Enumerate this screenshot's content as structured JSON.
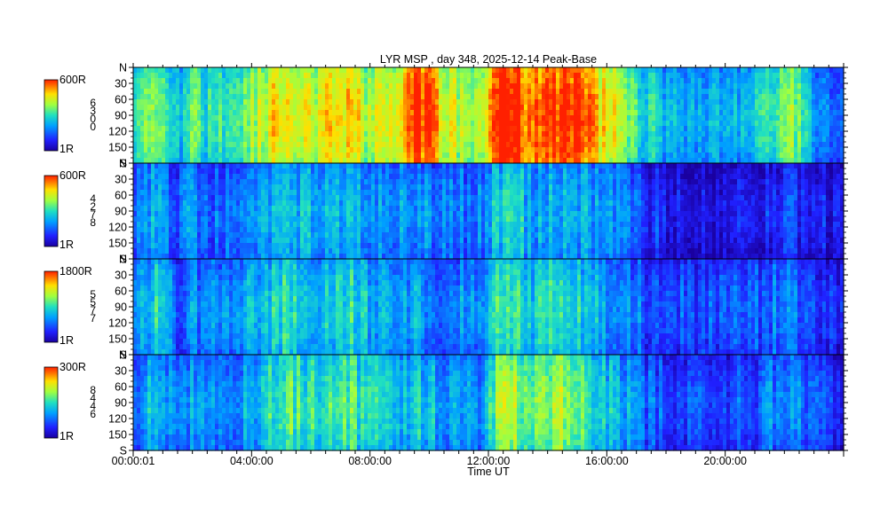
{
  "chart_data": {
    "type": "heatmap",
    "title": "LYR MSP , day 348, 2025-12-14 Peak-Base",
    "xlabel": "Time UT",
    "x_ticks": [
      "00:00:01",
      "04:00:00",
      "08:00:00",
      "12:00:00",
      "16:00:00",
      "20:00:00"
    ],
    "x_range_hours": [
      0,
      24
    ],
    "y_range_deg": [
      0,
      180
    ],
    "y_ticks": [
      "N",
      "30",
      "60",
      "90",
      "120",
      "150",
      "S"
    ],
    "panels": [
      {
        "colorbar_max": "600R",
        "colorbar_min": "1R",
        "channel_digits": [
          "6",
          "3",
          "0",
          "0"
        ],
        "intensity_profile": [
          0.38,
          0.5,
          0.62,
          0.45,
          0.35,
          0.55,
          0.4,
          0.42,
          0.45,
          0.4,
          0.55,
          0.6,
          0.7,
          0.75,
          0.72,
          0.7,
          0.65,
          0.7,
          0.72,
          0.75,
          0.65,
          0.6,
          0.68,
          0.7,
          0.78,
          0.95,
          0.88,
          0.72,
          0.65,
          0.62,
          0.6,
          0.65,
          0.98,
          1.0,
          0.98,
          0.8,
          0.85,
          0.9,
          0.95,
          0.92,
          0.82,
          0.75,
          0.68,
          0.62,
          0.55,
          0.42,
          0.38,
          0.35,
          0.3,
          0.32,
          0.28,
          0.3,
          0.3,
          0.28,
          0.3,
          0.35,
          0.45,
          0.5,
          0.55,
          0.52,
          0.25,
          0.2,
          0.15,
          0.12
        ]
      },
      {
        "colorbar_max": "600R",
        "colorbar_min": "1R",
        "channel_digits": [
          "4",
          "2",
          "7",
          "8"
        ],
        "intensity_profile": [
          0.18,
          0.25,
          0.3,
          0.22,
          0.15,
          0.28,
          0.2,
          0.2,
          0.22,
          0.2,
          0.25,
          0.28,
          0.32,
          0.35,
          0.34,
          0.33,
          0.3,
          0.32,
          0.33,
          0.34,
          0.3,
          0.28,
          0.3,
          0.28,
          0.26,
          0.3,
          0.25,
          0.22,
          0.2,
          0.22,
          0.2,
          0.22,
          0.35,
          0.4,
          0.38,
          0.3,
          0.32,
          0.34,
          0.35,
          0.33,
          0.3,
          0.28,
          0.25,
          0.22,
          0.2,
          0.12,
          0.1,
          0.08,
          0.06,
          0.06,
          0.05,
          0.06,
          0.06,
          0.06,
          0.06,
          0.07,
          0.1,
          0.12,
          0.12,
          0.1,
          0.06,
          0.05,
          0.04,
          0.03
        ]
      },
      {
        "colorbar_max": "1800R",
        "colorbar_min": "1R",
        "channel_digits": [
          "5",
          "5",
          "7",
          "7"
        ],
        "intensity_profile": [
          0.2,
          0.3,
          0.4,
          0.25,
          0.2,
          0.3,
          0.22,
          0.22,
          0.25,
          0.22,
          0.3,
          0.32,
          0.38,
          0.42,
          0.4,
          0.38,
          0.35,
          0.38,
          0.4,
          0.42,
          0.35,
          0.3,
          0.32,
          0.3,
          0.28,
          0.32,
          0.28,
          0.25,
          0.22,
          0.25,
          0.22,
          0.25,
          0.45,
          0.5,
          0.48,
          0.35,
          0.38,
          0.42,
          0.45,
          0.4,
          0.35,
          0.32,
          0.28,
          0.25,
          0.22,
          0.18,
          0.16,
          0.15,
          0.14,
          0.14,
          0.13,
          0.14,
          0.14,
          0.14,
          0.14,
          0.15,
          0.2,
          0.22,
          0.22,
          0.2,
          0.14,
          0.12,
          0.1,
          0.1
        ]
      },
      {
        "colorbar_max": "300R",
        "colorbar_min": "1R",
        "channel_digits": [
          "8",
          "4",
          "4",
          "6"
        ],
        "intensity_profile": [
          0.22,
          0.3,
          0.38,
          0.28,
          0.2,
          0.32,
          0.24,
          0.24,
          0.26,
          0.24,
          0.32,
          0.35,
          0.45,
          0.5,
          0.48,
          0.45,
          0.42,
          0.45,
          0.48,
          0.5,
          0.42,
          0.38,
          0.4,
          0.38,
          0.35,
          0.4,
          0.35,
          0.3,
          0.28,
          0.3,
          0.28,
          0.3,
          0.55,
          0.65,
          0.6,
          0.45,
          0.5,
          0.55,
          0.6,
          0.55,
          0.45,
          0.4,
          0.35,
          0.3,
          0.28,
          0.2,
          0.18,
          0.16,
          0.14,
          0.14,
          0.13,
          0.14,
          0.14,
          0.14,
          0.14,
          0.16,
          0.22,
          0.26,
          0.26,
          0.22,
          0.14,
          0.12,
          0.1,
          0.1
        ]
      }
    ]
  }
}
